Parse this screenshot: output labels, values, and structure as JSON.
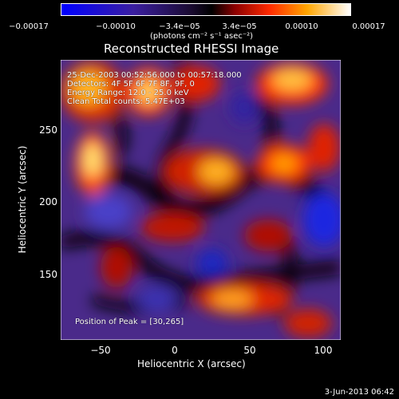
{
  "colorbar": {
    "ticks": [
      "−0.00017",
      "−0.00010",
      "−3.4e−05",
      "3.4e−05",
      "0.00010",
      "0.00017"
    ],
    "units": "(photons cm⁻² s⁻¹ asec⁻²)"
  },
  "title": "Reconstructed RHESSI Image",
  "info": {
    "time_range": "25-Dec-2003 00:52:56.000 to 00:57:18.000",
    "detectors": "Detectors: 4F 5F 6F 7F 8F, 9F, 0",
    "energy_range": "Energy Range: 12.0 - 25.0 keV",
    "counts": "Clean    Total counts: 5.47E+03",
    "peak": "Position of Peak = [30,265]"
  },
  "axes": {
    "xlabel": "Heliocentric X (arcsec)",
    "ylabel": "Heliocentric Y (arcsec)",
    "xticks": [
      "−50",
      "0",
      "50",
      "100"
    ],
    "yticks": [
      "250",
      "200",
      "150"
    ]
  },
  "footer": {
    "date": "3-Jun-2013 06:42"
  }
}
